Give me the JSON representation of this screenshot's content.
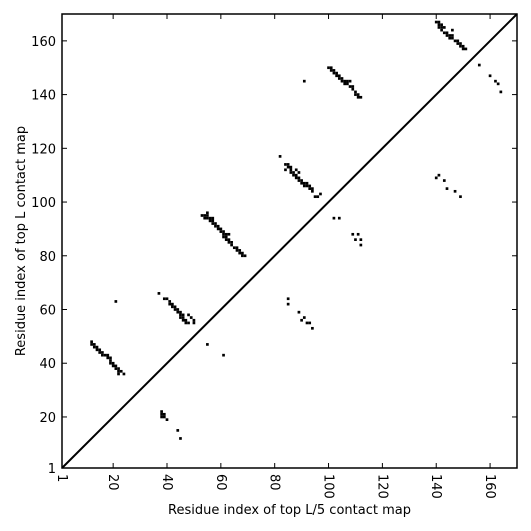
{
  "chart_data": {
    "type": "scatter",
    "title": "",
    "xlabel": "Residue index of top L/5 contact map",
    "ylabel": "Residue index of top L contact map",
    "xlim": [
      1,
      170
    ],
    "ylim": [
      1,
      170
    ],
    "xticks": [
      1,
      20,
      40,
      60,
      80,
      100,
      120,
      140,
      160
    ],
    "yticks": [
      1,
      20,
      40,
      60,
      80,
      100,
      120,
      140,
      160
    ],
    "diagonal": true,
    "grid": false,
    "marker_color": "#000000",
    "series": [
      {
        "values": [
          [
            12,
            48
          ],
          [
            12,
            47
          ],
          [
            13,
            47
          ],
          [
            13,
            46
          ],
          [
            14,
            46
          ],
          [
            14,
            45
          ],
          [
            15,
            45
          ],
          [
            15,
            44
          ],
          [
            16,
            44
          ],
          [
            16,
            43
          ],
          [
            17,
            43
          ],
          [
            18,
            43
          ],
          [
            18,
            42
          ],
          [
            19,
            42
          ],
          [
            19,
            41
          ],
          [
            19,
            40
          ],
          [
            20,
            40
          ],
          [
            20,
            39
          ],
          [
            21,
            39
          ],
          [
            21,
            38
          ],
          [
            22,
            38
          ],
          [
            22,
            37
          ],
          [
            22,
            36
          ],
          [
            23,
            37
          ],
          [
            24,
            36
          ],
          [
            21,
            63
          ],
          [
            38,
            22
          ],
          [
            38,
            21
          ],
          [
            38,
            20
          ],
          [
            39,
            21
          ],
          [
            39,
            20
          ],
          [
            40,
            19
          ],
          [
            44,
            15
          ],
          [
            45,
            12
          ],
          [
            37,
            66
          ],
          [
            39,
            64
          ],
          [
            40,
            64
          ],
          [
            41,
            63
          ],
          [
            41,
            62
          ],
          [
            42,
            62
          ],
          [
            42,
            61
          ],
          [
            43,
            61
          ],
          [
            43,
            60
          ],
          [
            44,
            60
          ],
          [
            44,
            59
          ],
          [
            45,
            59
          ],
          [
            45,
            58
          ],
          [
            46,
            58
          ],
          [
            46,
            57
          ],
          [
            45,
            57
          ],
          [
            46,
            56
          ],
          [
            47,
            56
          ],
          [
            47,
            55
          ],
          [
            48,
            55
          ],
          [
            48,
            58
          ],
          [
            49,
            57
          ],
          [
            50,
            56
          ],
          [
            50,
            55
          ],
          [
            53,
            95
          ],
          [
            54,
            95
          ],
          [
            55,
            95
          ],
          [
            55,
            96
          ],
          [
            54,
            94
          ],
          [
            55,
            94
          ],
          [
            56,
            94
          ],
          [
            56,
            93
          ],
          [
            57,
            93
          ],
          [
            57,
            94
          ],
          [
            57,
            92
          ],
          [
            58,
            92
          ],
          [
            58,
            91
          ],
          [
            59,
            91
          ],
          [
            59,
            90
          ],
          [
            60,
            90
          ],
          [
            60,
            89
          ],
          [
            61,
            89
          ],
          [
            61,
            88
          ],
          [
            61,
            87
          ],
          [
            62,
            88
          ],
          [
            62,
            87
          ],
          [
            62,
            86
          ],
          [
            63,
            86
          ],
          [
            63,
            85
          ],
          [
            63,
            88
          ],
          [
            64,
            85
          ],
          [
            64,
            84
          ],
          [
            65,
            83
          ],
          [
            66,
            83
          ],
          [
            66,
            82
          ],
          [
            67,
            82
          ],
          [
            67,
            81
          ],
          [
            68,
            81
          ],
          [
            68,
            80
          ],
          [
            69,
            80
          ],
          [
            55,
            47
          ],
          [
            61,
            43
          ],
          [
            82,
            117
          ],
          [
            84,
            114
          ],
          [
            84,
            112
          ],
          [
            85,
            114
          ],
          [
            85,
            113
          ],
          [
            86,
            112
          ],
          [
            86,
            111
          ],
          [
            86,
            113
          ],
          [
            87,
            111
          ],
          [
            87,
            110
          ],
          [
            88,
            112
          ],
          [
            88,
            110
          ],
          [
            88,
            109
          ],
          [
            89,
            109
          ],
          [
            89,
            108
          ],
          [
            89,
            111
          ],
          [
            90,
            108
          ],
          [
            90,
            107
          ],
          [
            91,
            107
          ],
          [
            91,
            106
          ],
          [
            92,
            106
          ],
          [
            92,
            107
          ],
          [
            93,
            106
          ],
          [
            93,
            105
          ],
          [
            94,
            105
          ],
          [
            94,
            104
          ],
          [
            95,
            102
          ],
          [
            96,
            102
          ],
          [
            97,
            103
          ],
          [
            85,
            64
          ],
          [
            85,
            62
          ],
          [
            89,
            59
          ],
          [
            90,
            56
          ],
          [
            91,
            57
          ],
          [
            92,
            55
          ],
          [
            93,
            55
          ],
          [
            94,
            53
          ],
          [
            91,
            145
          ],
          [
            100,
            150
          ],
          [
            101,
            150
          ],
          [
            101,
            149
          ],
          [
            102,
            149
          ],
          [
            102,
            148
          ],
          [
            103,
            148
          ],
          [
            103,
            147
          ],
          [
            104,
            147
          ],
          [
            104,
            146
          ],
          [
            105,
            146
          ],
          [
            105,
            145
          ],
          [
            106,
            145
          ],
          [
            106,
            144
          ],
          [
            107,
            144
          ],
          [
            107,
            145
          ],
          [
            108,
            145
          ],
          [
            108,
            143
          ],
          [
            109,
            143
          ],
          [
            109,
            142
          ],
          [
            110,
            141
          ],
          [
            110,
            140
          ],
          [
            111,
            140
          ],
          [
            111,
            139
          ],
          [
            112,
            139
          ],
          [
            102,
            94
          ],
          [
            104,
            94
          ],
          [
            109,
            88
          ],
          [
            110,
            86
          ],
          [
            111,
            88
          ],
          [
            112,
            86
          ],
          [
            112,
            84
          ],
          [
            140,
            167
          ],
          [
            141,
            167
          ],
          [
            141,
            166
          ],
          [
            141,
            165
          ],
          [
            142,
            166
          ],
          [
            142,
            165
          ],
          [
            142,
            164
          ],
          [
            143,
            165
          ],
          [
            143,
            163
          ],
          [
            144,
            163
          ],
          [
            144,
            162
          ],
          [
            145,
            162
          ],
          [
            145,
            161
          ],
          [
            146,
            164
          ],
          [
            146,
            162
          ],
          [
            146,
            161
          ],
          [
            147,
            160
          ],
          [
            148,
            160
          ],
          [
            148,
            159
          ],
          [
            149,
            159
          ],
          [
            149,
            158
          ],
          [
            150,
            158
          ],
          [
            150,
            157
          ],
          [
            151,
            157
          ],
          [
            156,
            151
          ],
          [
            160,
            147
          ],
          [
            162,
            145
          ],
          [
            163,
            144
          ],
          [
            164,
            141
          ],
          [
            140,
            109
          ],
          [
            141,
            110
          ],
          [
            143,
            108
          ],
          [
            144,
            105
          ],
          [
            147,
            104
          ],
          [
            149,
            102
          ]
        ]
      }
    ]
  }
}
